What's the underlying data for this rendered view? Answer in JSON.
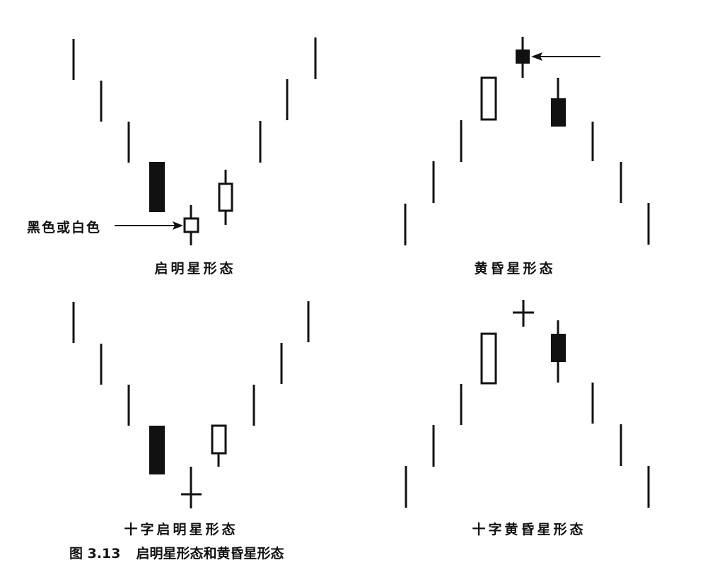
{
  "figure": {
    "caption_number": "图 3.13",
    "caption_title": "启明星形态和黄昏星形态",
    "panels": [
      {
        "label": "启明星形态",
        "annotation": "黑色或白色"
      },
      {
        "label": "黄昏星形态"
      },
      {
        "label": "十字启明星形态"
      },
      {
        "label": "十字黄昏星形态"
      }
    ]
  },
  "colors": {
    "ink": "#111111",
    "background": "#ffffff"
  }
}
